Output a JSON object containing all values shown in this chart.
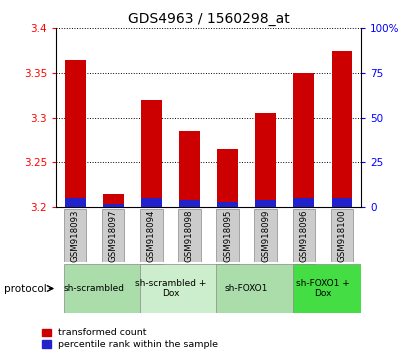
{
  "title": "GDS4963 / 1560298_at",
  "samples": [
    "GSM918093",
    "GSM918097",
    "GSM918094",
    "GSM918098",
    "GSM918095",
    "GSM918099",
    "GSM918096",
    "GSM918100"
  ],
  "transformed_count": [
    3.365,
    3.215,
    3.32,
    3.285,
    3.265,
    3.305,
    3.35,
    3.375
  ],
  "percentile_rank": [
    5,
    2,
    5,
    4,
    3,
    4,
    5,
    5
  ],
  "ymin": 3.2,
  "ymax": 3.4,
  "y2min": 0,
  "y2max": 100,
  "yticks": [
    3.2,
    3.25,
    3.3,
    3.35,
    3.4
  ],
  "y2ticks": [
    0,
    25,
    50,
    75,
    100
  ],
  "bar_color_red": "#cc0000",
  "bar_color_blue": "#2222cc",
  "bar_width": 0.55,
  "sample_box_color": "#cccccc",
  "proto_colors": [
    "#99ee99",
    "#ccffcc",
    "#99ee99",
    "#33cc33"
  ],
  "proto_labels": [
    "sh-scrambled",
    "sh-scrambled +\nDox",
    "sh-FOXO1",
    "sh-FOXO1 +\nDox"
  ],
  "proto_ranges": [
    [
      0,
      2
    ],
    [
      2,
      4
    ],
    [
      4,
      6
    ],
    [
      6,
      8
    ]
  ],
  "legend_red": "transformed count",
  "legend_blue": "percentile rank within the sample",
  "title_fontsize": 10,
  "tick_fontsize": 7.5
}
